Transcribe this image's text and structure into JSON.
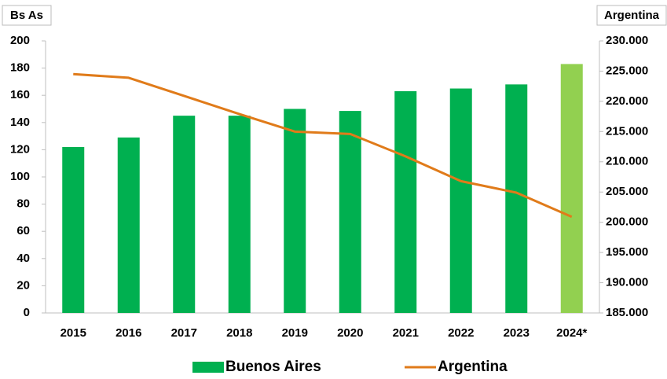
{
  "chart_data": {
    "type": "bar",
    "y_label": "Bs As",
    "y2_label": "Argentina",
    "categories": [
      "2015",
      "2016",
      "2017",
      "2018",
      "2019",
      "2020",
      "2021",
      "2022",
      "2023",
      "2024*"
    ],
    "series": [
      {
        "name": "Buenos Aires",
        "type": "bar",
        "color": "#00b050",
        "colors": [
          "#00b050",
          "#00b050",
          "#00b050",
          "#00b050",
          "#00b050",
          "#00b050",
          "#00b050",
          "#00b050",
          "#00b050",
          "#92d050"
        ],
        "values": [
          122,
          129,
          145,
          145,
          150,
          148.5,
          163,
          165,
          168,
          183
        ]
      },
      {
        "name": "Argentina",
        "type": "line",
        "axis": "y2",
        "color": "#e07b1a",
        "values": [
          224500,
          223900,
          220900,
          217900,
          215000,
          214600,
          210900,
          206800,
          204900,
          200900
        ]
      }
    ],
    "ylim": [
      0,
      200
    ],
    "yticks": [
      0,
      20,
      40,
      60,
      80,
      100,
      120,
      140,
      160,
      180,
      200
    ],
    "y2lim": [
      185000,
      230000
    ],
    "y2ticks": [
      {
        "value": 185000,
        "label": "185.000"
      },
      {
        "value": 190000,
        "label": "190.000"
      },
      {
        "value": 195000,
        "label": "195.000"
      },
      {
        "value": 200000,
        "label": "200.000"
      },
      {
        "value": 205000,
        "label": "205.000"
      },
      {
        "value": 210000,
        "label": "210.000"
      },
      {
        "value": 215000,
        "label": "215.000"
      },
      {
        "value": 220000,
        "label": "220.000"
      },
      {
        "value": 225000,
        "label": "225.000"
      },
      {
        "value": 230000,
        "label": "230.000"
      }
    ],
    "grid": false,
    "legend": "bottom"
  }
}
